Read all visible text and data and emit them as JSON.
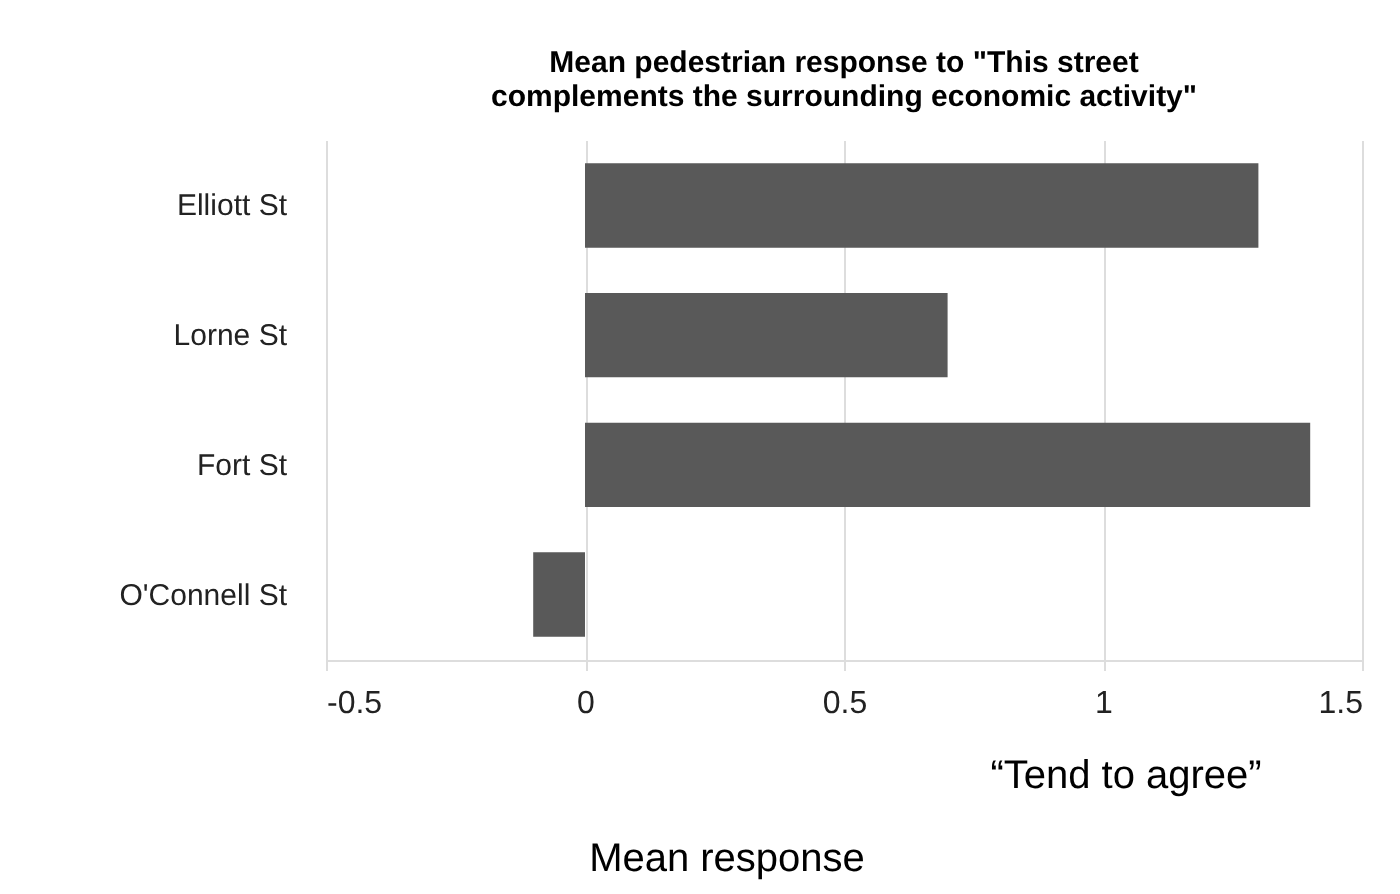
{
  "chart_data": {
    "type": "bar",
    "orientation": "horizontal",
    "title": "Mean pedestrian response to \"This street complements the surrounding economic activity\"",
    "categories": [
      "Elliott St",
      "Lorne St",
      "Fort St",
      "O'Connell St"
    ],
    "values": [
      1.3,
      0.7,
      1.4,
      -0.1
    ],
    "color": "#595959",
    "xlim": [
      -0.5,
      1.5
    ],
    "xticks": [
      -0.5,
      0,
      0.5,
      1,
      1.5
    ],
    "grid": "x",
    "xlabel": "Mean response",
    "annotations": [
      "“Tend to agree”"
    ]
  }
}
